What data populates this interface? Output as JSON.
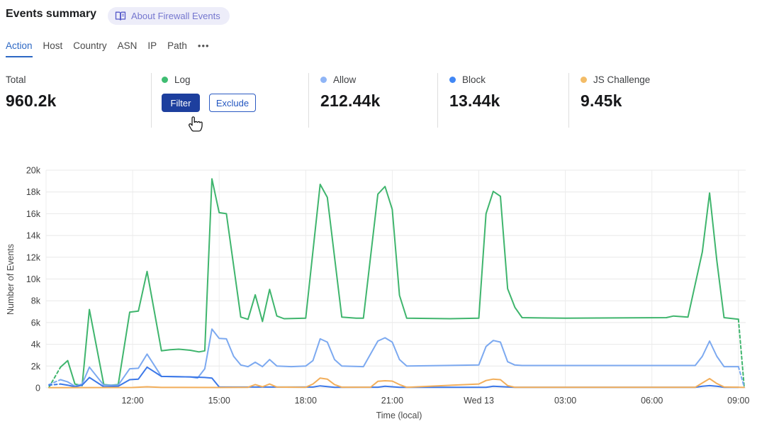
{
  "header": {
    "title": "Events summary",
    "about_label": "About Firewall Events"
  },
  "tabs": {
    "items": [
      {
        "label": "Action",
        "active": true
      },
      {
        "label": "Host",
        "active": false
      },
      {
        "label": "Country",
        "active": false
      },
      {
        "label": "ASN",
        "active": false
      },
      {
        "label": "IP",
        "active": false
      },
      {
        "label": "Path",
        "active": false
      }
    ],
    "more_label": "•••"
  },
  "stats": {
    "total": {
      "label": "Total",
      "value": "960.2k"
    },
    "log": {
      "label": "Log",
      "color": "#3fbd72",
      "filter_label": "Filter",
      "exclude_label": "Exclude"
    },
    "allow": {
      "label": "Allow",
      "value": "212.44k",
      "color": "#8fb5f6"
    },
    "block": {
      "label": "Block",
      "value": "13.44k",
      "color": "#4187f5"
    },
    "js_challenge": {
      "label": "JS Challenge",
      "value": "9.45k",
      "color": "#f3bc67"
    }
  },
  "chart_data": {
    "type": "line",
    "title": "",
    "xlabel": "Time (local)",
    "ylabel": "Number of Events",
    "y_unit": "thousands of events",
    "ylim_k": [
      0,
      20
    ],
    "ytick_step_k": 2,
    "ytick_labels": [
      "0",
      "2k",
      "4k",
      "6k",
      "8k",
      "10k",
      "12k",
      "14k",
      "16k",
      "18k",
      "20k"
    ],
    "x_hours_after_0900": [
      0,
      24.25
    ],
    "xticks": [
      {
        "t": 3,
        "label": "12:00"
      },
      {
        "t": 6,
        "label": "15:00"
      },
      {
        "t": 9,
        "label": "18:00"
      },
      {
        "t": 12,
        "label": "21:00"
      },
      {
        "t": 15,
        "label": "Wed 13"
      },
      {
        "t": 18,
        "label": "03:00"
      },
      {
        "t": 21,
        "label": "06:00"
      },
      {
        "t": 24,
        "label": "09:00"
      }
    ],
    "grid": true,
    "legend_position": "top-stat-cards",
    "series": [
      {
        "name": "Log",
        "color": "#3fb56d",
        "dashed_start": true,
        "dashed_end": true,
        "points_t_vk": [
          [
            0.1,
            0.05
          ],
          [
            0.5,
            1.9
          ],
          [
            0.75,
            2.5
          ],
          [
            1.0,
            0.35
          ],
          [
            1.25,
            0.2
          ],
          [
            1.5,
            7.2
          ],
          [
            2.0,
            0.3
          ],
          [
            2.25,
            0.25
          ],
          [
            2.5,
            0.3
          ],
          [
            2.9,
            6.95
          ],
          [
            3.2,
            7.05
          ],
          [
            3.5,
            10.7
          ],
          [
            4.0,
            3.4
          ],
          [
            4.3,
            3.5
          ],
          [
            4.6,
            3.55
          ],
          [
            5.0,
            3.45
          ],
          [
            5.3,
            3.3
          ],
          [
            5.5,
            3.4
          ],
          [
            5.75,
            19.2
          ],
          [
            6.0,
            16.1
          ],
          [
            6.25,
            16.0
          ],
          [
            6.75,
            6.5
          ],
          [
            7.0,
            6.3
          ],
          [
            7.25,
            8.55
          ],
          [
            7.5,
            6.1
          ],
          [
            7.75,
            9.05
          ],
          [
            8.0,
            6.6
          ],
          [
            8.25,
            6.35
          ],
          [
            9.0,
            6.4
          ],
          [
            9.5,
            18.7
          ],
          [
            9.75,
            17.5
          ],
          [
            10.25,
            6.5
          ],
          [
            10.75,
            6.4
          ],
          [
            11.0,
            6.4
          ],
          [
            11.5,
            17.8
          ],
          [
            11.75,
            18.5
          ],
          [
            12.0,
            16.4
          ],
          [
            12.25,
            8.5
          ],
          [
            12.5,
            6.4
          ],
          [
            14.0,
            6.35
          ],
          [
            15.0,
            6.4
          ],
          [
            15.25,
            16.0
          ],
          [
            15.5,
            18.05
          ],
          [
            15.75,
            17.6
          ],
          [
            16.0,
            9.1
          ],
          [
            16.25,
            7.4
          ],
          [
            16.5,
            6.45
          ],
          [
            18.0,
            6.4
          ],
          [
            21.5,
            6.45
          ],
          [
            21.75,
            6.6
          ],
          [
            22.25,
            6.5
          ],
          [
            22.75,
            12.5
          ],
          [
            23.0,
            17.9
          ],
          [
            23.25,
            11.7
          ],
          [
            23.5,
            6.45
          ],
          [
            24.0,
            6.3
          ],
          [
            24.2,
            0.05
          ]
        ]
      },
      {
        "name": "Allow",
        "color": "#7ca9f0",
        "dashed_start": true,
        "dashed_end": true,
        "points_t_vk": [
          [
            0.1,
            0.3
          ],
          [
            0.5,
            0.75
          ],
          [
            0.75,
            0.55
          ],
          [
            1.0,
            0.15
          ],
          [
            1.25,
            0.35
          ],
          [
            1.5,
            1.9
          ],
          [
            2.0,
            0.25
          ],
          [
            2.5,
            0.25
          ],
          [
            2.9,
            1.75
          ],
          [
            3.2,
            1.8
          ],
          [
            3.5,
            3.1
          ],
          [
            4.0,
            1.05
          ],
          [
            5.0,
            1.0
          ],
          [
            5.25,
            0.9
          ],
          [
            5.5,
            1.75
          ],
          [
            5.75,
            5.4
          ],
          [
            6.0,
            4.55
          ],
          [
            6.25,
            4.5
          ],
          [
            6.5,
            2.9
          ],
          [
            6.75,
            2.1
          ],
          [
            7.0,
            1.95
          ],
          [
            7.25,
            2.35
          ],
          [
            7.5,
            1.95
          ],
          [
            7.75,
            2.6
          ],
          [
            8.0,
            2.0
          ],
          [
            8.5,
            1.95
          ],
          [
            9.0,
            2.0
          ],
          [
            9.25,
            2.5
          ],
          [
            9.5,
            4.5
          ],
          [
            9.75,
            4.2
          ],
          [
            10.0,
            2.6
          ],
          [
            10.25,
            2.0
          ],
          [
            11.0,
            1.95
          ],
          [
            11.5,
            4.3
          ],
          [
            11.75,
            4.6
          ],
          [
            12.0,
            4.2
          ],
          [
            12.25,
            2.6
          ],
          [
            12.5,
            2.0
          ],
          [
            15.0,
            2.1
          ],
          [
            15.25,
            3.8
          ],
          [
            15.5,
            4.35
          ],
          [
            15.75,
            4.2
          ],
          [
            16.0,
            2.4
          ],
          [
            16.25,
            2.1
          ],
          [
            16.5,
            2.05
          ],
          [
            22.5,
            2.05
          ],
          [
            22.75,
            2.9
          ],
          [
            23.0,
            4.3
          ],
          [
            23.25,
            2.9
          ],
          [
            23.5,
            1.95
          ],
          [
            24.0,
            1.95
          ],
          [
            24.2,
            0.05
          ]
        ]
      },
      {
        "name": "Block",
        "color": "#3c78e8",
        "dashed_start": true,
        "dashed_end": false,
        "points_t_vk": [
          [
            0.1,
            0.25
          ],
          [
            0.5,
            0.35
          ],
          [
            0.75,
            0.25
          ],
          [
            1.0,
            0.1
          ],
          [
            1.25,
            0.25
          ],
          [
            1.5,
            0.95
          ],
          [
            2.0,
            0.1
          ],
          [
            2.5,
            0.15
          ],
          [
            2.9,
            0.75
          ],
          [
            3.2,
            0.8
          ],
          [
            3.5,
            1.9
          ],
          [
            4.0,
            1.05
          ],
          [
            5.0,
            1.0
          ],
          [
            5.5,
            0.95
          ],
          [
            5.75,
            0.9
          ],
          [
            6.0,
            0.08
          ],
          [
            9.25,
            0.07
          ],
          [
            9.5,
            0.18
          ],
          [
            9.75,
            0.12
          ],
          [
            10.0,
            0.05
          ],
          [
            11.5,
            0.06
          ],
          [
            11.75,
            0.15
          ],
          [
            12.25,
            0.05
          ],
          [
            15.25,
            0.05
          ],
          [
            15.5,
            0.15
          ],
          [
            15.75,
            0.12
          ],
          [
            16.25,
            0.05
          ],
          [
            22.5,
            0.05
          ],
          [
            22.75,
            0.15
          ],
          [
            23.0,
            0.2
          ],
          [
            23.25,
            0.15
          ],
          [
            23.5,
            0.05
          ],
          [
            24.0,
            0.05
          ]
        ]
      },
      {
        "name": "JS Challenge",
        "color": "#f2ae5a",
        "dashed_start": false,
        "dashed_end": false,
        "points_t_vk": [
          [
            0.1,
            0.02
          ],
          [
            3.0,
            0.03
          ],
          [
            3.5,
            0.1
          ],
          [
            4.0,
            0.04
          ],
          [
            6.0,
            0.03
          ],
          [
            7.0,
            0.05
          ],
          [
            7.25,
            0.3
          ],
          [
            7.5,
            0.1
          ],
          [
            7.75,
            0.35
          ],
          [
            8.0,
            0.07
          ],
          [
            9.0,
            0.05
          ],
          [
            9.25,
            0.35
          ],
          [
            9.5,
            0.9
          ],
          [
            9.75,
            0.8
          ],
          [
            10.0,
            0.3
          ],
          [
            10.25,
            0.06
          ],
          [
            11.25,
            0.06
          ],
          [
            11.5,
            0.6
          ],
          [
            11.75,
            0.65
          ],
          [
            12.0,
            0.62
          ],
          [
            12.25,
            0.3
          ],
          [
            12.5,
            0.05
          ],
          [
            15.0,
            0.35
          ],
          [
            15.25,
            0.67
          ],
          [
            15.5,
            0.8
          ],
          [
            15.75,
            0.75
          ],
          [
            16.0,
            0.2
          ],
          [
            16.25,
            0.05
          ],
          [
            22.5,
            0.05
          ],
          [
            22.75,
            0.45
          ],
          [
            23.0,
            0.85
          ],
          [
            23.25,
            0.4
          ],
          [
            23.5,
            0.08
          ],
          [
            24.2,
            0.04
          ]
        ]
      }
    ]
  }
}
